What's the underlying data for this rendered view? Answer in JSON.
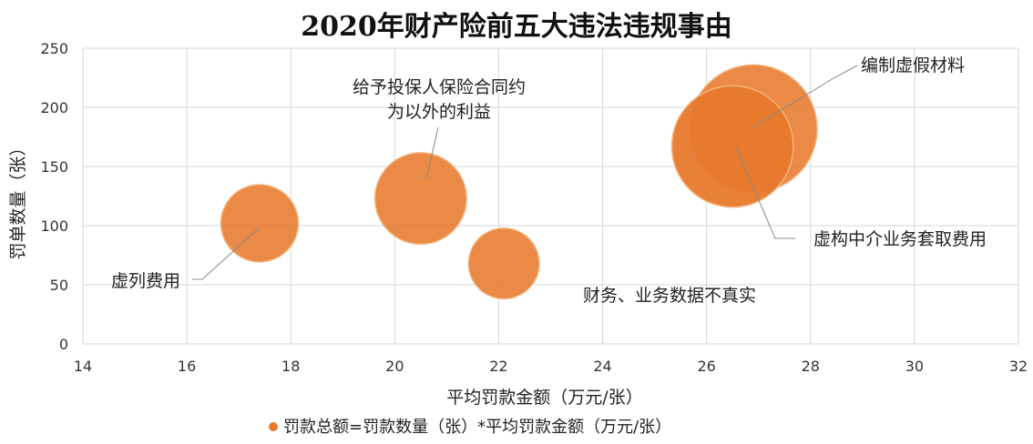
{
  "chart_data": {
    "type": "bubble",
    "title": "2020年财产险前五大违法违规事由",
    "xlabel": "平均罚款金额（万元/张）",
    "ylabel": "罚单数量（张）",
    "xlim": [
      14,
      32
    ],
    "ylim": [
      0,
      250
    ],
    "xticks": [
      14,
      16,
      18,
      20,
      22,
      24,
      26,
      28,
      30,
      32
    ],
    "yticks": [
      0,
      50,
      100,
      150,
      200,
      250
    ],
    "grid": true,
    "bubble_color": "#e8792c",
    "legend": {
      "label": "罚款总额=罚款数量（张）*平均罚款金额（万元/张）",
      "position": "bottom"
    },
    "points": [
      {
        "name": "虚列费用",
        "label_lines": [
          "虚列费用"
        ],
        "x": 17.4,
        "y": 102,
        "size": 1800
      },
      {
        "name": "给予投保人保险合同约定以外的利益",
        "label_lines": [
          "给予投保人保险合同约",
          "为以外的利益"
        ],
        "x": 20.5,
        "y": 123,
        "size": 2520
      },
      {
        "name": "财务、业务数据不真实",
        "label_lines": [
          "财务、业务数据不真实"
        ],
        "x": 22.1,
        "y": 68,
        "size": 1500
      },
      {
        "name": "编制虚假材料",
        "label_lines": [
          "编制虚假材料"
        ],
        "x": 26.9,
        "y": 182,
        "size": 4900
      },
      {
        "name": "虚构中介业务套取费用",
        "label_lines": [
          "虚构中介业务套取费用"
        ],
        "x": 26.5,
        "y": 167,
        "size": 4450
      }
    ]
  }
}
